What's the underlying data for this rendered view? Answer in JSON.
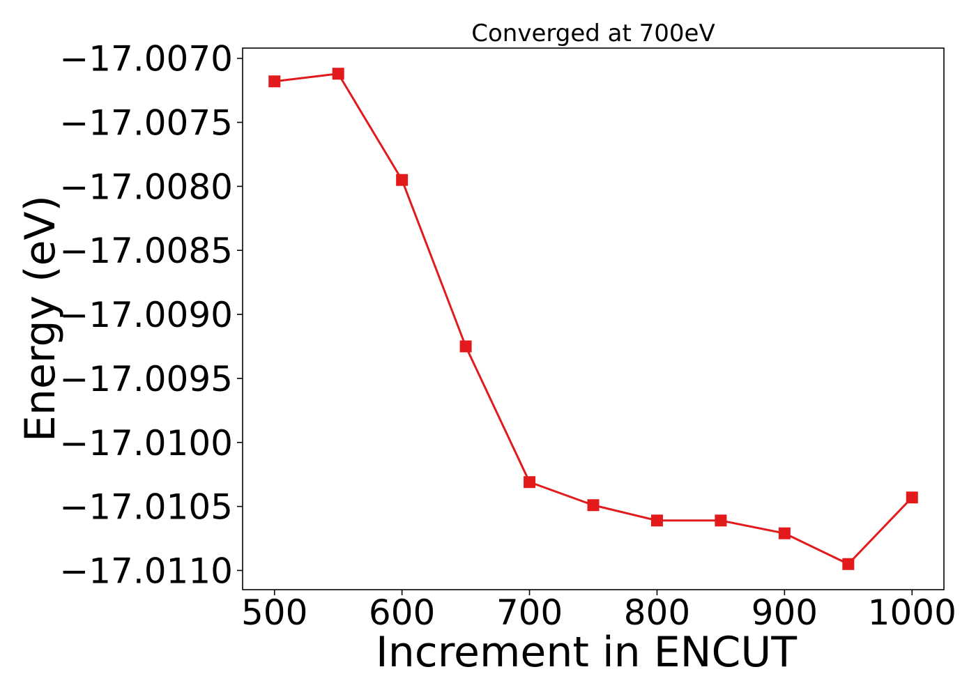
{
  "chart_data": {
    "type": "line",
    "title": "Converged at 700eV",
    "xlabel": "Increment in ENCUT",
    "ylabel": "Energy (eV)",
    "xlim": [
      475,
      1025
    ],
    "ylim": [
      -17.01115,
      -17.00692
    ],
    "x_ticks": [
      500,
      600,
      700,
      800,
      900,
      1000
    ],
    "x_tick_labels": [
      "500",
      "600",
      "700",
      "800",
      "900",
      "1000"
    ],
    "y_ticks": [
      -17.007,
      -17.0075,
      -17.008,
      -17.0085,
      -17.009,
      -17.0095,
      -17.01,
      -17.0105,
      -17.011
    ],
    "y_tick_labels": [
      "−17.0070",
      "−17.0075",
      "−17.0080",
      "−17.0085",
      "−17.0090",
      "−17.0095",
      "−17.0100",
      "−17.0105",
      "−17.0110"
    ],
    "grid": false,
    "legend": "none",
    "series": [
      {
        "color": "#e31a1c",
        "marker": "square",
        "x": [
          500,
          550,
          600,
          650,
          700,
          750,
          800,
          850,
          900,
          950,
          1000
        ],
        "y": [
          -17.00718,
          -17.00712,
          -17.00795,
          -17.00925,
          -17.01031,
          -17.01049,
          -17.01061,
          -17.01061,
          -17.01071,
          -17.01095,
          -17.01043
        ]
      }
    ]
  }
}
